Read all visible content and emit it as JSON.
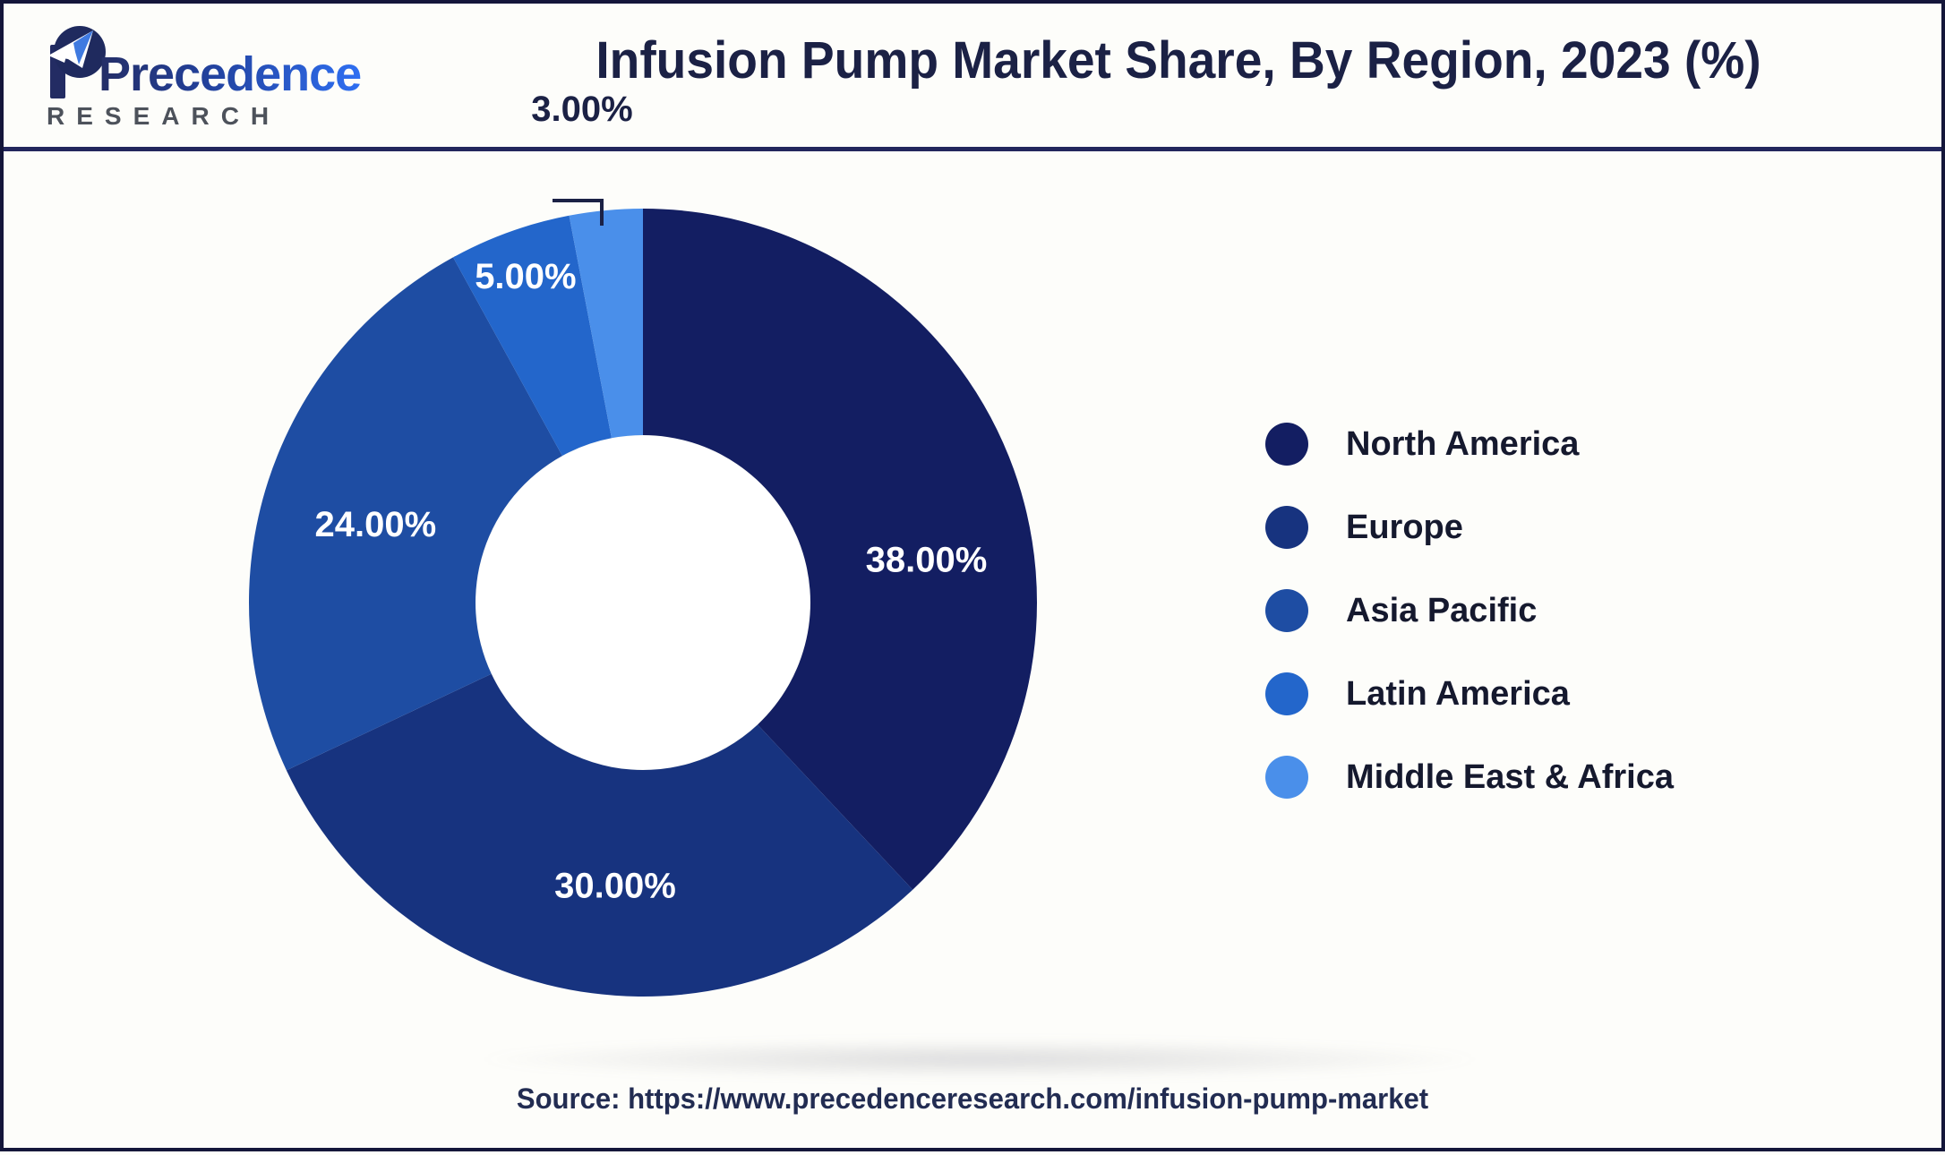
{
  "header": {
    "logo": {
      "brand": "Precedence",
      "sub": "RESEARCH"
    },
    "title": "Infusion Pump Market Share, By Region, 2023 (%)"
  },
  "chart_data": {
    "type": "pie",
    "subtype": "donut",
    "title": "Infusion Pump Market Share, By Region, 2023 (%)",
    "unit": "%",
    "start_angle_deg": 0,
    "direction": "clockwise",
    "categories": [
      "North America",
      "Europe",
      "Asia Pacific",
      "Latin America",
      "Middle East & Africa"
    ],
    "values": [
      38,
      30,
      24,
      5,
      3
    ],
    "value_labels": [
      "38.00%",
      "30.00%",
      "24.00%",
      "5.00%",
      "3.00%"
    ],
    "colors": [
      "#131e62",
      "#17337f",
      "#1e4da3",
      "#2366cb",
      "#4a8fea"
    ],
    "legend_position": "right",
    "inner_radius_ratio": 0.425,
    "grid": false
  },
  "legend": {
    "items": [
      "North America",
      "Europe",
      "Asia Pacific",
      "Latin America",
      "Middle East & Africa"
    ]
  },
  "footer": {
    "source": "Source: https://www.precedenceresearch.com/infusion-pump-market"
  }
}
